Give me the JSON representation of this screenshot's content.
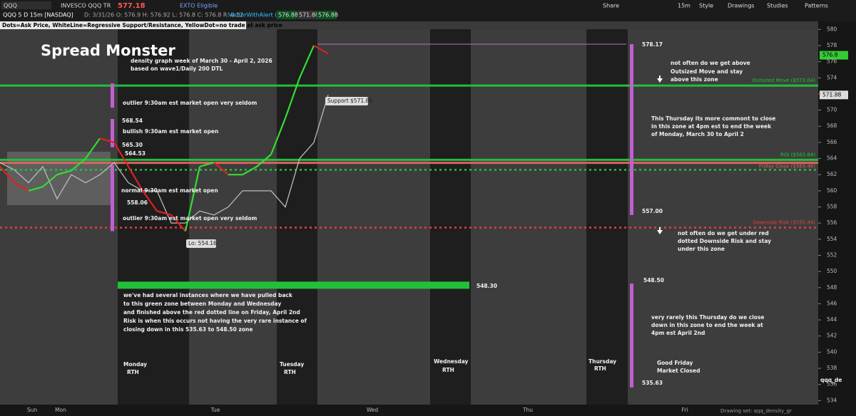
{
  "toolbar": {
    "symbol": "QQQ",
    "company": "INVESCO QQQ TR",
    "last": "577.18",
    "badge": "EXTO Eligible",
    "buttons": [
      "Share",
      "15m",
      "Style",
      "Drawings",
      "Studies",
      "Patterns"
    ]
  },
  "info_bar": {
    "chart_id": "QQQ 5 D 15m [NASDAQ]",
    "ohlc": "D: 3/31/26  O: 576.9  H: 576.92  L: 576.8  C: 576.8  R: 0.12",
    "study": "VectorWithAlert (20)",
    "study_values": [
      "576.88",
      "571.88",
      "576.88"
    ]
  },
  "note": "Dots=Ask Price, WhiteLine=Regressive Support/Resistance, YellowDot=no trade at ask price",
  "chart_data": {
    "type": "line",
    "title": "Spread Monster",
    "ylim": [
      533.5,
      581
    ],
    "yticks": [
      534,
      536,
      538,
      540,
      542,
      544,
      546,
      548,
      550,
      552,
      554,
      556,
      558,
      560,
      562,
      564,
      566,
      568,
      570,
      572,
      574,
      576,
      578,
      580
    ],
    "x_labels": [
      "Sun",
      "Mon",
      "Tue",
      "Wed",
      "Thu",
      "Fri"
    ],
    "price": {
      "up_color": "#33dd33",
      "down_color": "#e02020",
      "values": [
        563,
        561,
        560,
        560.5,
        562,
        562.5,
        564,
        566.5,
        566,
        563,
        560,
        557.5,
        557,
        555,
        563,
        563.5,
        562,
        562,
        563,
        564.5,
        569,
        574,
        578,
        577
      ]
    },
    "regression_line": {
      "color": "#bbbbbb",
      "values": [
        563.5,
        562.6,
        561,
        563,
        559,
        562,
        561,
        562,
        563.5,
        561,
        560,
        560,
        556,
        556,
        557.5,
        557,
        558,
        560,
        560,
        560,
        558,
        564,
        566,
        571.88
      ]
    },
    "levels": [
      {
        "label": "Outsized Move ($573.04)",
        "value": 573.04,
        "color": "#22c03a",
        "style": "solid"
      },
      {
        "label": "RGI ($563.84)",
        "value": 563.84,
        "color": "#22c03a",
        "style": "solid"
      },
      {
        "label": "Friday Close ($563.46)",
        "value": 563.46,
        "color": "#e06060",
        "style": "solid"
      },
      {
        "value": 562.6,
        "color": "#22c03a",
        "style": "dotted"
      },
      {
        "label": "Downside Risk ($555.44)",
        "value": 555.44,
        "color": "#e04040",
        "style": "dotted"
      },
      {
        "value": 578.17,
        "color": "#c070c0",
        "style": "thin"
      }
    ],
    "zones": [
      {
        "low": 570.3,
        "high": 573.3
      },
      {
        "low": 565.4,
        "high": 568.9
      },
      {
        "low": 558.3,
        "high": 563.2
      },
      {
        "low": 555.0,
        "high": 558.3
      },
      {
        "low": 557.0,
        "high": 578.17
      },
      {
        "low": 535.63,
        "high": 548.5
      }
    ],
    "zone_color": "#c060d0",
    "green_bar": {
      "value": 548.3,
      "color": "#22c03a"
    },
    "price_tags": [
      {
        "value": 576.8,
        "color": "#33cc33"
      },
      {
        "value": 571.88,
        "color": "#dddddd"
      }
    ],
    "annotations": [
      "density graph week of March 30 - April 2, 2026",
      "based on wave1/Daily 200 DTL",
      "outlier 9:30am est market open very seldom",
      "568.54",
      "bullish 9:30am est market open",
      "565.30",
      "564.53",
      "normal 9:30am est market open",
      "558.06",
      "outlier 9:30am est market open very seldom",
      "Lo: 554.16",
      "Support $571.88",
      "not often do we get above",
      "Outsized Move and stay",
      "above this zone",
      "This Thursday its more commont to close",
      "in this zone at 4pm est to end the week",
      "of Monday, March 30 to April 2",
      "not often do we get under red",
      "dotted Downside Risk and stay",
      "under this zone",
      "we've had several instances where  we have pulled back",
      "to this green zone between Monday and Wednesday",
      "and finished above the red dotted line on Friday, April 2nd",
      "Risk is when this occurs not having the very rare instance of",
      "closing down in this 535.63 to 548.50 zone",
      "578.17",
      "557.00",
      "548.30",
      "548.50",
      "535.63",
      "very rarely this Thursday do we close",
      "down in this zone to end the week at",
      "4pm est April 2nd",
      "Monday",
      "RTH",
      "Tuesday",
      "RTH",
      "Wednesday",
      "RTH",
      "Thursday",
      "RTH",
      "Good Friday",
      "Market Closed",
      "qqq_de"
    ],
    "footer": "Drawing set: qqq_density_gr"
  }
}
